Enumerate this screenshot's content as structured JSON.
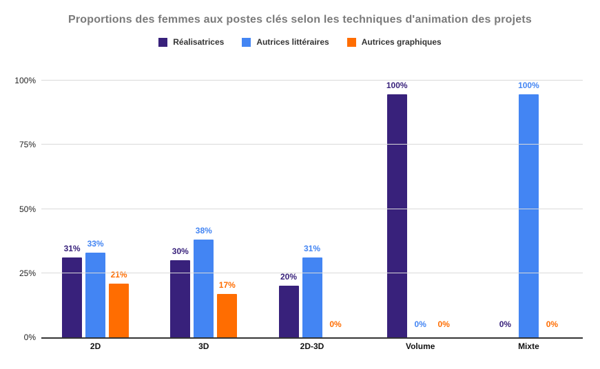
{
  "title": "Proportions des femmes aux postes clés selon les techniques d'animation des projets",
  "colors": {
    "series_purple": "#38217b",
    "series_blue": "#4385f3",
    "series_orange": "#ff6d01",
    "title_gray": "#7a7a7a",
    "gridline": "#d9d9d9",
    "axis_line": "#333333"
  },
  "chart_data": {
    "type": "bar",
    "title": "Proportions des femmes aux postes clés selon les techniques d'animation des projets",
    "categories": [
      "2D",
      "3D",
      "2D-3D",
      "Volume",
      "Mixte"
    ],
    "series": [
      {
        "name": "Réalisatrices",
        "color": "#38217b",
        "values": [
          31,
          30,
          20,
          100,
          0
        ]
      },
      {
        "name": "Autrices littéraires",
        "color": "#4385f3",
        "values": [
          33,
          38,
          31,
          0,
          100
        ]
      },
      {
        "name": "Autrices graphiques",
        "color": "#ff6d01",
        "values": [
          21,
          17,
          0,
          0,
          0
        ]
      }
    ],
    "value_suffix": "%",
    "yticks": [
      "0%",
      "25%",
      "50%",
      "75%",
      "100%"
    ],
    "ytick_values": [
      0,
      25,
      50,
      75,
      100
    ],
    "ylim": [
      0,
      100
    ],
    "grid": true,
    "legend_position": "top",
    "data_labels": true
  }
}
